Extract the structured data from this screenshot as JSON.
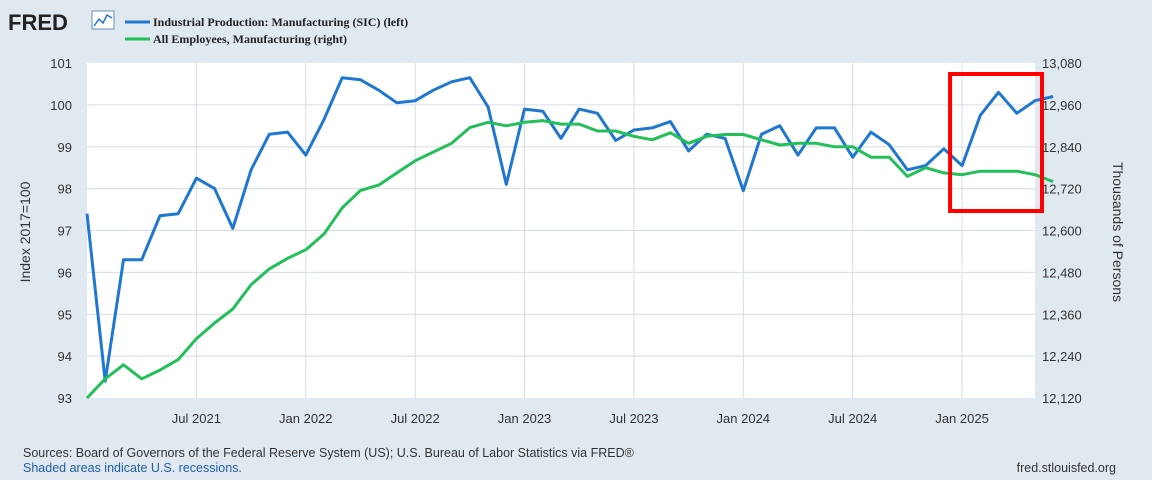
{
  "brand": {
    "logo_text": "FRED"
  },
  "footer": {
    "sources": "Sources: Board of Governors of the Federal Reserve System (US); U.S. Bureau of Labor Statistics via FRED®",
    "shaded": "Shaded areas indicate U.S. recessions.",
    "site": "fred.stlouisfed.org"
  },
  "colors": {
    "left_series": "#1f77d0",
    "right_series": "#23c05a",
    "highlight_box": "#ff0000",
    "background": "#e1e9f0",
    "plot_bg": "#ffffff"
  },
  "chart_data": {
    "type": "line",
    "x_start": "2021-01",
    "x_end": "2025-05",
    "x_ticks": [
      {
        "date": "2021-07",
        "label": "Jul 2021"
      },
      {
        "date": "2022-01",
        "label": "Jan 2022"
      },
      {
        "date": "2022-07",
        "label": "Jul 2022"
      },
      {
        "date": "2023-01",
        "label": "Jan 2023"
      },
      {
        "date": "2023-07",
        "label": "Jul 2023"
      },
      {
        "date": "2024-01",
        "label": "Jan 2024"
      },
      {
        "date": "2024-07",
        "label": "Jul 2024"
      },
      {
        "date": "2025-01",
        "label": "Jan 2025"
      }
    ],
    "y_left": {
      "label": "Index 2017=100",
      "min": 93,
      "max": 101,
      "ticks": [
        "93",
        "94",
        "95",
        "96",
        "97",
        "98",
        "99",
        "100",
        "101"
      ]
    },
    "y_right": {
      "label": "Thousands of Persons",
      "min": 12120,
      "max": 13080,
      "ticks": [
        "12,120",
        "12,240",
        "12,360",
        "12,480",
        "12,600",
        "12,720",
        "12,840",
        "12,960",
        "13,080"
      ]
    },
    "series": [
      {
        "name": "Industrial Production: Manufacturing (SIC) (left)",
        "axis": "left",
        "color": "#1f77d0",
        "values": [
          97.4,
          93.4,
          96.3,
          96.3,
          97.35,
          97.4,
          98.25,
          98.0,
          97.05,
          98.45,
          99.3,
          99.35,
          98.8,
          99.65,
          100.65,
          100.6,
          100.35,
          100.05,
          100.1,
          100.35,
          100.55,
          100.65,
          99.95,
          98.1,
          99.9,
          99.85,
          99.2,
          99.9,
          99.8,
          99.15,
          99.4,
          99.45,
          99.6,
          98.9,
          99.3,
          99.2,
          97.95,
          99.3,
          99.5,
          98.8,
          99.45,
          99.45,
          98.75,
          99.35,
          99.05,
          98.45,
          98.55,
          98.95,
          98.55,
          99.75,
          100.3,
          99.8,
          100.1,
          100.2
        ]
      },
      {
        "name": "All Employees, Manufacturing (right)",
        "axis": "right",
        "color": "#23c05a",
        "values": [
          12120,
          12175,
          12215,
          12175,
          12200,
          12230,
          12290,
          12335,
          12375,
          12445,
          12490,
          12520,
          12545,
          12590,
          12665,
          12715,
          12730,
          12765,
          12800,
          12825,
          12850,
          12895,
          12910,
          12900,
          12910,
          12915,
          12905,
          12905,
          12885,
          12885,
          12870,
          12860,
          12880,
          12850,
          12870,
          12875,
          12875,
          12860,
          12845,
          12850,
          12850,
          12840,
          12840,
          12810,
          12810,
          12755,
          12780,
          12765,
          12760,
          12770,
          12770,
          12770,
          12760,
          12740
        ]
      }
    ],
    "highlight": {
      "from": "2025-01",
      "to": "2025-05",
      "note": "red rectangle around latest values"
    }
  }
}
